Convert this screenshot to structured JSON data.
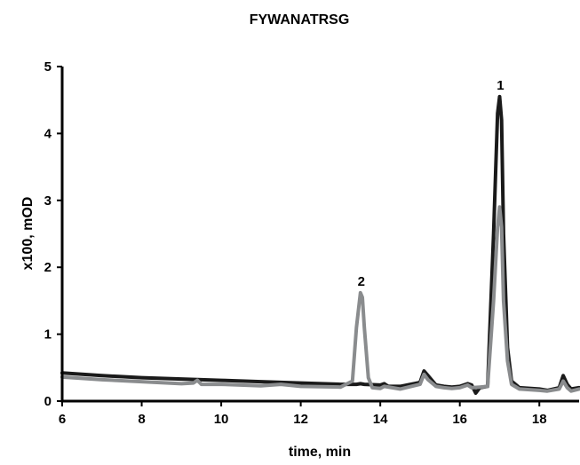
{
  "chart_data": {
    "type": "line",
    "title": "FYWANATRSG",
    "xlabel": "time, min",
    "ylabel": "x100, mOD",
    "xlim": [
      6,
      19
    ],
    "ylim": [
      0,
      5
    ],
    "xticks": [
      6,
      8,
      10,
      12,
      14,
      16,
      18
    ],
    "yticks": [
      0,
      1,
      2,
      3,
      4,
      5
    ],
    "grid": false,
    "legend": "none",
    "series": [
      {
        "color": "#1a1a1a",
        "x": [
          6.0,
          7.0,
          8.0,
          9.0,
          10.0,
          11.0,
          12.0,
          13.0,
          13.4,
          13.5,
          13.6,
          14.0,
          14.1,
          14.2,
          14.5,
          15.0,
          15.1,
          15.2,
          15.4,
          15.6,
          15.8,
          16.0,
          16.2,
          16.3,
          16.4,
          16.5,
          16.7,
          16.85,
          16.95,
          17.0,
          17.05,
          17.1,
          17.2,
          17.3,
          17.5,
          18.0,
          18.2,
          18.5,
          18.6,
          18.7,
          18.8,
          19.0
        ],
        "y": [
          0.42,
          0.38,
          0.35,
          0.33,
          0.31,
          0.29,
          0.27,
          0.25,
          0.25,
          0.26,
          0.25,
          0.24,
          0.26,
          0.22,
          0.22,
          0.28,
          0.45,
          0.38,
          0.24,
          0.22,
          0.21,
          0.22,
          0.26,
          0.24,
          0.12,
          0.2,
          0.22,
          2.5,
          4.3,
          4.55,
          4.2,
          2.5,
          0.8,
          0.3,
          0.2,
          0.18,
          0.16,
          0.2,
          0.38,
          0.25,
          0.18,
          0.2
        ]
      },
      {
        "color": "#8a8c8e",
        "x": [
          6.0,
          7.0,
          8.0,
          9.0,
          9.3,
          9.4,
          9.5,
          10.0,
          11.0,
          11.5,
          12.0,
          13.0,
          13.3,
          13.4,
          13.5,
          13.55,
          13.6,
          13.7,
          13.8,
          14.0,
          14.1,
          14.5,
          15.0,
          15.1,
          15.2,
          15.4,
          15.6,
          15.8,
          16.0,
          16.2,
          16.3,
          16.5,
          16.7,
          16.85,
          16.95,
          17.0,
          17.05,
          17.1,
          17.2,
          17.3,
          17.5,
          18.0,
          18.2,
          18.5,
          18.6,
          18.7,
          18.8,
          19.0
        ],
        "y": [
          0.36,
          0.32,
          0.29,
          0.26,
          0.27,
          0.31,
          0.25,
          0.25,
          0.23,
          0.25,
          0.22,
          0.21,
          0.3,
          1.1,
          1.62,
          1.55,
          1.1,
          0.35,
          0.2,
          0.19,
          0.22,
          0.18,
          0.25,
          0.4,
          0.32,
          0.22,
          0.2,
          0.19,
          0.2,
          0.24,
          0.2,
          0.21,
          0.22,
          1.5,
          2.6,
          2.9,
          2.6,
          1.5,
          0.6,
          0.25,
          0.18,
          0.16,
          0.15,
          0.18,
          0.3,
          0.2,
          0.15,
          0.18
        ]
      }
    ],
    "annotations": [
      {
        "text": "1",
        "x": 17.0,
        "y": 4.55
      },
      {
        "text": "2",
        "x": 13.5,
        "y": 1.62
      }
    ]
  }
}
